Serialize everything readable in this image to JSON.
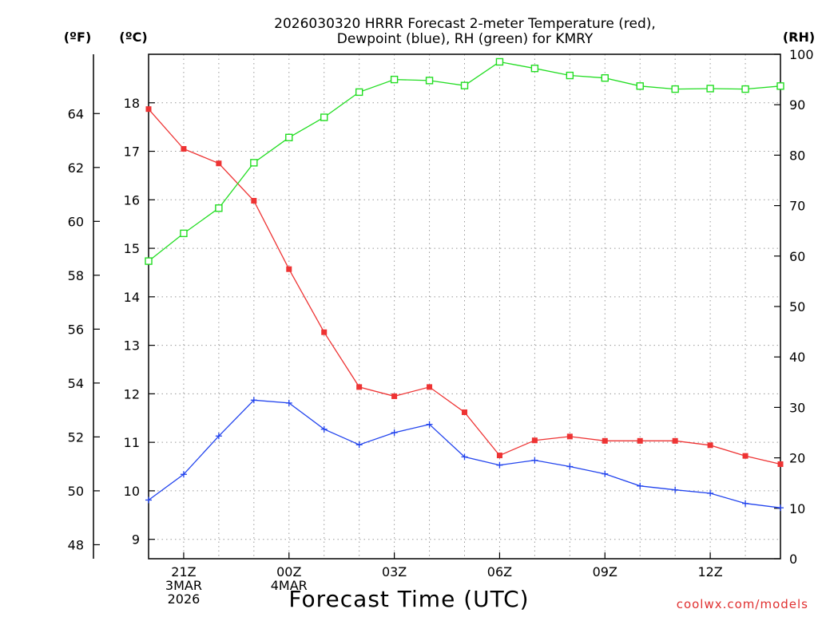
{
  "chart_data": {
    "type": "line",
    "title_lines": [
      "2026030320 HRRR Forecast 2-meter Temperature (red),",
      "Dewpoint (blue), RH (green) for KMRY"
    ],
    "xlabel": "Forecast Time (UTC)",
    "watermark": "coolwx.com/models",
    "left_outer_unit": "(ºF)",
    "left_inner_unit": "(ºC)",
    "right_unit": "(RH)",
    "x_hours": [
      20,
      21,
      22,
      23,
      24,
      25,
      26,
      27,
      28,
      29,
      30,
      31,
      32,
      33,
      34,
      35,
      36,
      37,
      38
    ],
    "x_ticks": [
      {
        "hour": 21,
        "lines": [
          "21Z",
          "3MAR",
          "2026"
        ]
      },
      {
        "hour": 24,
        "lines": [
          "00Z",
          "4MAR"
        ]
      },
      {
        "hour": 27,
        "lines": [
          "03Z"
        ]
      },
      {
        "hour": 30,
        "lines": [
          "06Z"
        ]
      },
      {
        "hour": 33,
        "lines": [
          "09Z"
        ]
      },
      {
        "hour": 36,
        "lines": [
          "12Z"
        ]
      }
    ],
    "xlim": [
      20,
      38
    ],
    "ylim_c": [
      8.6,
      19.0
    ],
    "ylim_rh": [
      0,
      100
    ],
    "yticks_c": [
      "9",
      "10",
      "11",
      "12",
      "13",
      "14",
      "15",
      "16",
      "17",
      "18"
    ],
    "yticks_f": [
      "48",
      "50",
      "52",
      "54",
      "56",
      "58",
      "60",
      "62",
      "64"
    ],
    "yticks_rh": [
      "0",
      "10",
      "20",
      "30",
      "40",
      "50",
      "60",
      "70",
      "80",
      "90",
      "100"
    ],
    "series": [
      {
        "name": "Temperature",
        "units": "C",
        "axis": "left",
        "color": "#ee3333",
        "marker": "filled-square",
        "values": [
          17.87,
          17.05,
          16.75,
          15.98,
          14.57,
          13.27,
          12.14,
          11.95,
          12.14,
          11.62,
          10.73,
          11.04,
          11.12,
          11.03,
          11.03,
          11.03,
          10.94,
          10.72,
          10.55
        ]
      },
      {
        "name": "Dewpoint",
        "units": "C",
        "axis": "left",
        "color": "#2244ee",
        "marker": "plus",
        "values": [
          9.81,
          10.34,
          11.13,
          11.87,
          11.81,
          11.27,
          10.95,
          11.2,
          11.37,
          10.7,
          10.53,
          10.63,
          10.5,
          10.35,
          10.1,
          10.02,
          9.95,
          9.74,
          9.65
        ]
      },
      {
        "name": "RH",
        "units": "%",
        "axis": "right",
        "color": "#22dd22",
        "marker": "open-square",
        "values": [
          59,
          64.5,
          69.5,
          78.5,
          83.5,
          87.5,
          92.5,
          95,
          94.8,
          93.8,
          98.5,
          97.2,
          95.8,
          95.3,
          93.7,
          93.1,
          93.2,
          93.1,
          93.7
        ]
      }
    ]
  }
}
